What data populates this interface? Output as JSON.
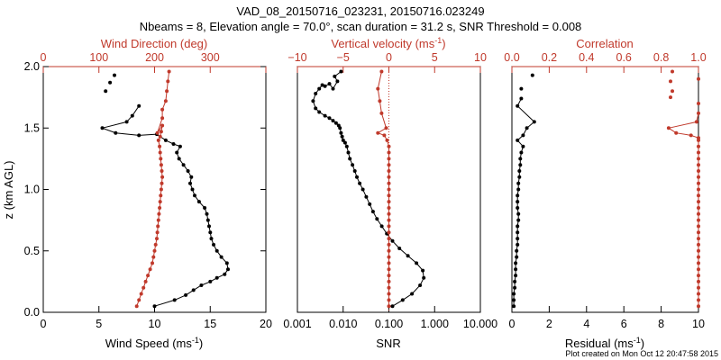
{
  "title_line1": "VAD_08_20150716_023231, 20150716.023249",
  "title_line2": "Nbeams = 8, Elevation angle = 70.0°, scan duration = 31.2 s, SNR Threshold = 0.008",
  "footer": "Plot created on Mon Oct 12 20:47:58 2015",
  "colors": {
    "black": "#000000",
    "red": "#c0392b"
  },
  "chart_data": [
    {
      "type": "line",
      "ylabel": "z (km AGL)",
      "ylim": [
        0,
        2
      ],
      "yticks": [
        "0.0",
        "0.5",
        "1.0",
        "1.5",
        "2.0"
      ],
      "bottom_axis": {
        "label": "Wind Speed (ms",
        "label_sup": "-1",
        "label_end": ")",
        "lim": [
          0,
          20
        ],
        "ticks": [
          "0",
          "5",
          "10",
          "15",
          "20"
        ]
      },
      "top_axis": {
        "label": "Wind Direction (deg)",
        "lim": [
          0,
          400
        ],
        "ticks": [
          "0",
          "100",
          "200",
          "300"
        ]
      },
      "series": [
        {
          "color": "#000000",
          "axis": "bottom",
          "x": [
            10.0,
            11.8,
            12.8,
            13.5,
            14.2,
            15.0,
            15.6,
            16.3,
            16.6,
            16.5,
            16.0,
            15.6,
            15.3,
            15.1,
            15.0,
            14.9,
            14.8,
            14.7,
            14.5,
            14.0,
            13.6,
            13.4,
            13.2,
            13.3,
            13.0,
            12.6,
            12.2,
            12.0,
            12.3,
            11.7,
            11.0,
            10.2,
            8.6,
            6.5,
            5.3,
            7.5,
            8.0,
            8.6
          ],
          "y": [
            0.05,
            0.1,
            0.14,
            0.18,
            0.22,
            0.25,
            0.28,
            0.31,
            0.35,
            0.4,
            0.45,
            0.5,
            0.55,
            0.6,
            0.65,
            0.7,
            0.75,
            0.8,
            0.85,
            0.9,
            0.95,
            1.0,
            1.05,
            1.1,
            1.15,
            1.2,
            1.25,
            1.3,
            1.35,
            1.37,
            1.4,
            1.45,
            1.44,
            1.46,
            1.5,
            1.55,
            1.6,
            1.68
          ]
        },
        {
          "color": "#000000",
          "axis": "bottom",
          "x": [
            5.6,
            6.0,
            6.4
          ],
          "y": [
            1.8,
            1.87,
            1.93
          ],
          "connected": false
        },
        {
          "color": "#c0392b",
          "axis": "top",
          "x": [
            168,
            172,
            176,
            180,
            184,
            188,
            192,
            196,
            198,
            200,
            202,
            204,
            205,
            206,
            207,
            208,
            209,
            210,
            211,
            212,
            213,
            214,
            213,
            212,
            211,
            210,
            209,
            207,
            210,
            212,
            214,
            205,
            214,
            214,
            220,
            222,
            224,
            226
          ],
          "y": [
            0.05,
            0.1,
            0.15,
            0.2,
            0.25,
            0.3,
            0.35,
            0.4,
            0.45,
            0.5,
            0.55,
            0.6,
            0.65,
            0.7,
            0.75,
            0.8,
            0.85,
            0.9,
            0.95,
            1.0,
            1.05,
            1.1,
            1.15,
            1.2,
            1.25,
            1.3,
            1.35,
            1.4,
            1.43,
            1.47,
            1.52,
            1.46,
            1.58,
            1.65,
            1.72,
            1.8,
            1.88,
            1.96
          ]
        }
      ]
    },
    {
      "type": "line",
      "bottom_axis": {
        "label": "SNR",
        "scale": "log",
        "lim": [
          0.001,
          10
        ],
        "ticks": [
          "0.001",
          "0.010",
          "0.100",
          "1.000",
          "10.000"
        ]
      },
      "top_axis": {
        "label": "Vertical velocity (ms",
        "label_sup": "-1",
        "label_end": ")",
        "lim": [
          -10,
          10
        ],
        "ticks": [
          "−10",
          "−5",
          "0",
          "5",
          "10"
        ]
      },
      "series": [
        {
          "color": "#000000",
          "axis": "bottom",
          "x": [
            0.12,
            0.2,
            0.32,
            0.48,
            0.58,
            0.55,
            0.4,
            0.26,
            0.17,
            0.12,
            0.09,
            0.07,
            0.055,
            0.045,
            0.038,
            0.032,
            0.027,
            0.023,
            0.02,
            0.018,
            0.016,
            0.014,
            0.013,
            0.012,
            0.011,
            0.01,
            0.0095,
            0.009,
            0.0085,
            0.008,
            0.007,
            0.006,
            0.005,
            0.004,
            0.003,
            0.0025,
            0.0022,
            0.0025,
            0.003,
            0.0035,
            0.004,
            0.005,
            0.006,
            0.0075,
            0.0065,
            0.009
          ],
          "y": [
            0.05,
            0.1,
            0.15,
            0.22,
            0.28,
            0.34,
            0.4,
            0.46,
            0.52,
            0.58,
            0.64,
            0.7,
            0.76,
            0.82,
            0.88,
            0.94,
            1.0,
            1.05,
            1.1,
            1.15,
            1.2,
            1.25,
            1.3,
            1.35,
            1.38,
            1.4,
            1.43,
            1.46,
            1.5,
            1.52,
            1.54,
            1.56,
            1.58,
            1.6,
            1.63,
            1.66,
            1.72,
            1.78,
            1.82,
            1.85,
            1.84,
            1.86,
            1.82,
            1.88,
            1.92,
            1.96
          ]
        },
        {
          "color": "#c0392b",
          "axis": "top",
          "x": [
            0,
            0,
            0,
            0,
            0,
            0,
            0,
            0,
            0,
            0,
            0,
            0,
            0,
            0,
            0,
            0,
            0,
            0,
            0,
            0,
            0,
            0,
            0,
            0,
            0,
            0,
            0,
            -0.2,
            -0.5,
            -1.2,
            -0.3,
            -0.8,
            -1.0,
            -1.2,
            -0.8
          ],
          "y": [
            0.05,
            0.1,
            0.15,
            0.2,
            0.25,
            0.3,
            0.35,
            0.4,
            0.45,
            0.5,
            0.55,
            0.6,
            0.65,
            0.7,
            0.75,
            0.8,
            0.85,
            0.9,
            0.95,
            1.0,
            1.05,
            1.1,
            1.15,
            1.2,
            1.25,
            1.3,
            1.35,
            1.4,
            1.44,
            1.46,
            1.5,
            1.62,
            1.72,
            1.82,
            1.96
          ]
        }
      ]
    },
    {
      "type": "line",
      "bottom_axis": {
        "label": "Residual (ms",
        "label_sup": "-1",
        "label_end": ")",
        "lim": [
          0,
          10
        ],
        "ticks": [
          "0",
          "2",
          "4",
          "6",
          "8",
          "10"
        ]
      },
      "top_axis": {
        "label": "Correlation",
        "lim": [
          0,
          1
        ],
        "ticks": [
          "0.0",
          "0.2",
          "0.4",
          "0.6",
          "0.8",
          "1.0"
        ]
      },
      "series": [
        {
          "color": "#000000",
          "axis": "bottom",
          "x": [
            0.1,
            0.1,
            0.1,
            0.15,
            0.15,
            0.2,
            0.2,
            0.2,
            0.25,
            0.25,
            0.3,
            0.3,
            0.3,
            0.3,
            0.35,
            0.35,
            0.3,
            0.3,
            0.3,
            0.35,
            0.35,
            0.4,
            0.4,
            0.45,
            0.45,
            0.5,
            0.6,
            0.3,
            0.6,
            0.8,
            1.2,
            0.3,
            0.5
          ],
          "y": [
            0.05,
            0.1,
            0.15,
            0.2,
            0.25,
            0.3,
            0.35,
            0.4,
            0.45,
            0.5,
            0.55,
            0.6,
            0.65,
            0.7,
            0.75,
            0.8,
            0.85,
            0.9,
            0.95,
            1.0,
            1.05,
            1.1,
            1.15,
            1.2,
            1.25,
            1.3,
            1.35,
            1.4,
            1.44,
            1.5,
            1.55,
            1.68,
            1.74
          ]
        },
        {
          "color": "#000000",
          "axis": "bottom",
          "x": [
            0.5,
            1.1
          ],
          "y": [
            1.82,
            1.93
          ],
          "connected": false
        },
        {
          "color": "#c0392b",
          "axis": "top",
          "x": [
            1,
            1,
            1,
            1,
            1,
            1,
            1,
            1,
            1,
            1,
            1,
            1,
            1,
            1,
            1,
            1,
            1,
            1,
            1,
            1,
            1,
            1,
            1,
            1,
            1,
            1,
            1,
            1,
            1,
            0.96,
            0.88,
            0.84,
            0.99,
            1.0
          ],
          "y": [
            0.05,
            0.1,
            0.15,
            0.2,
            0.25,
            0.3,
            0.35,
            0.4,
            0.45,
            0.5,
            0.55,
            0.6,
            0.65,
            0.7,
            0.75,
            0.8,
            0.85,
            0.9,
            0.95,
            1.0,
            1.05,
            1.1,
            1.15,
            1.2,
            1.25,
            1.3,
            1.35,
            1.4,
            1.42,
            1.44,
            1.46,
            1.5,
            1.55,
            1.62
          ]
        },
        {
          "color": "#c0392b",
          "axis": "top",
          "x": [
            0.85,
            0.86,
            0.85,
            0.86,
            1.0,
            1.0
          ],
          "y": [
            1.75,
            1.8,
            1.88,
            1.96,
            1.7,
            1.9
          ],
          "connected": false
        }
      ]
    }
  ]
}
